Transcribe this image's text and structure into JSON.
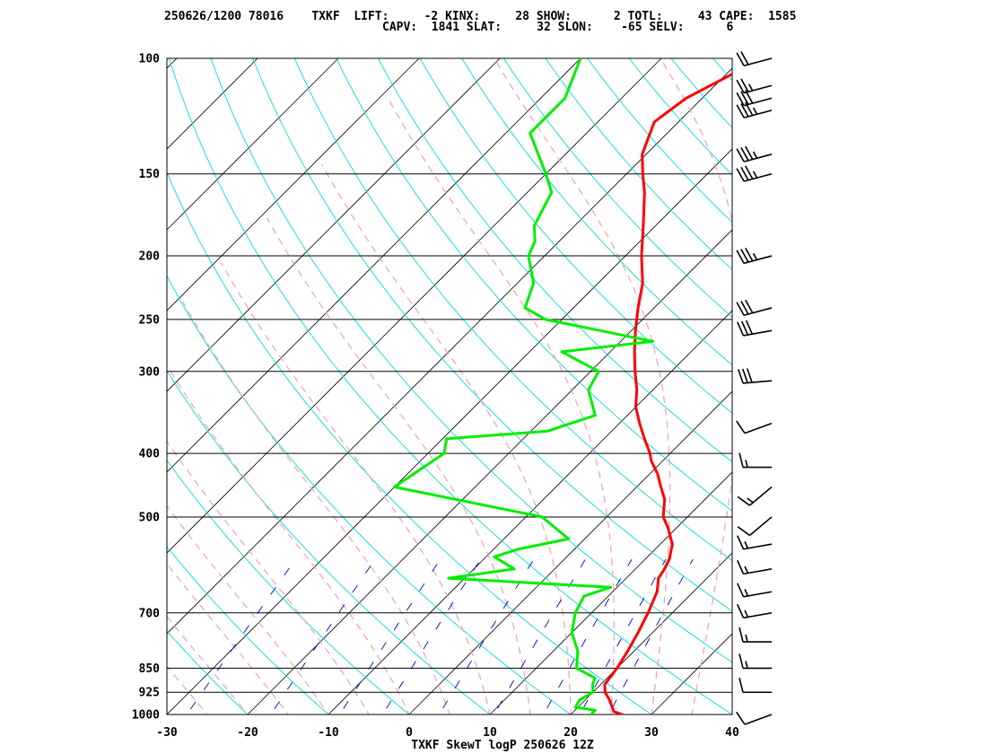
{
  "header": {
    "line1": "250626/1200 78016    TXKF  LIFT:     -2 KINX:     28 SHOW:      2 TOTL:     43 CAPE:  1585",
    "line2": "CAPV:  1841 SLAT:     32 SLON:    -65 SELV:      6"
  },
  "footer": "TXKF SkewT logP 250626 12Z",
  "colors": {
    "temperature": "#ff0000",
    "dewpoint": "#00ee00",
    "isotherm": "#000000",
    "dry_adiabat": "#00dddd",
    "moist_adiabat": "#f4a0b0",
    "mixing_ratio": "#0000cc"
  },
  "chart_data": {
    "type": "line",
    "title": "TXKF SkewT logP 250626 12Z",
    "x_axis": {
      "label": "",
      "range": [
        -30,
        40
      ],
      "ticks": [
        -30,
        -20,
        -10,
        0,
        10,
        20,
        30,
        40
      ]
    },
    "y_axis": {
      "label": "",
      "scale": "log-pressure",
      "range": [
        1000,
        100
      ],
      "ticks": [
        100,
        150,
        200,
        250,
        300,
        400,
        500,
        700,
        850,
        925,
        1000
      ]
    },
    "series": [
      {
        "key": "temperature",
        "points": [
          [
            1000,
            26.4
          ],
          [
            990,
            25
          ],
          [
            970,
            24
          ],
          [
            950,
            23
          ],
          [
            925,
            21.5
          ],
          [
            900,
            20.5
          ],
          [
            850,
            20
          ],
          [
            800,
            19.2
          ],
          [
            750,
            18.2
          ],
          [
            700,
            17
          ],
          [
            650,
            15.5
          ],
          [
            620,
            14
          ],
          [
            600,
            13.6
          ],
          [
            580,
            13
          ],
          [
            550,
            11.5
          ],
          [
            520,
            9
          ],
          [
            500,
            7
          ],
          [
            470,
            5
          ],
          [
            450,
            3
          ],
          [
            430,
            1
          ],
          [
            410,
            -1.5
          ],
          [
            400,
            -2.5
          ],
          [
            380,
            -5
          ],
          [
            360,
            -7.5
          ],
          [
            340,
            -10
          ],
          [
            320,
            -12
          ],
          [
            300,
            -14.5
          ],
          [
            280,
            -17
          ],
          [
            260,
            -19.5
          ],
          [
            240,
            -22
          ],
          [
            220,
            -24.5
          ],
          [
            200,
            -28
          ],
          [
            180,
            -31.5
          ],
          [
            160,
            -35.5
          ],
          [
            150,
            -38
          ],
          [
            140,
            -40.5
          ],
          [
            125,
            -43
          ],
          [
            115,
            -42
          ],
          [
            100,
            -37.5
          ]
        ]
      },
      {
        "key": "dewpoint",
        "points": [
          [
            1000,
            22.5
          ],
          [
            985,
            22.5
          ],
          [
            975,
            19.7
          ],
          [
            950,
            19.3
          ],
          [
            925,
            20
          ],
          [
            900,
            19
          ],
          [
            880,
            18.5
          ],
          [
            850,
            15
          ],
          [
            800,
            13
          ],
          [
            750,
            10
          ],
          [
            700,
            8
          ],
          [
            660,
            7
          ],
          [
            640,
            9.2
          ],
          [
            620,
            -12
          ],
          [
            600,
            -5
          ],
          [
            575,
            -9
          ],
          [
            560,
            -7
          ],
          [
            540,
            -2
          ],
          [
            500,
            -8
          ],
          [
            450,
            -30
          ],
          [
            400,
            -28
          ],
          [
            380,
            -29.5
          ],
          [
            370,
            -18
          ],
          [
            350,
            -14
          ],
          [
            320,
            -18
          ],
          [
            300,
            -19
          ],
          [
            280,
            -26
          ],
          [
            270,
            -16
          ],
          [
            250,
            -32
          ],
          [
            240,
            -36
          ],
          [
            220,
            -38
          ],
          [
            200,
            -42
          ],
          [
            190,
            -43
          ],
          [
            180,
            -45
          ],
          [
            160,
            -47
          ],
          [
            150,
            -50
          ],
          [
            130,
            -57
          ],
          [
            115,
            -57
          ],
          [
            100,
            -60
          ]
        ]
      }
    ],
    "wind_barbs": [
      {
        "p": 1000,
        "dir": 250,
        "spd": 10
      },
      {
        "p": 925,
        "dir": 270,
        "spd": 10
      },
      {
        "p": 850,
        "dir": 270,
        "spd": 15
      },
      {
        "p": 775,
        "dir": 270,
        "spd": 15
      },
      {
        "p": 700,
        "dir": 260,
        "spd": 15
      },
      {
        "p": 650,
        "dir": 260,
        "spd": 15
      },
      {
        "p": 600,
        "dir": 260,
        "spd": 15
      },
      {
        "p": 550,
        "dir": 260,
        "spd": 15
      },
      {
        "p": 500,
        "dir": 230,
        "spd": 10
      },
      {
        "p": 450,
        "dir": 230,
        "spd": 15
      },
      {
        "p": 420,
        "dir": 270,
        "spd": 15
      },
      {
        "p": 360,
        "dir": 250,
        "spd": 10
      },
      {
        "p": 310,
        "dir": 265,
        "spd": 30
      },
      {
        "p": 260,
        "dir": 260,
        "spd": 30
      },
      {
        "p": 240,
        "dir": 255,
        "spd": 30
      },
      {
        "p": 200,
        "dir": 255,
        "spd": 35
      },
      {
        "p": 150,
        "dir": 255,
        "spd": 35
      },
      {
        "p": 140,
        "dir": 255,
        "spd": 35
      },
      {
        "p": 120,
        "dir": 255,
        "spd": 35
      },
      {
        "p": 115,
        "dir": 255,
        "spd": 30
      },
      {
        "p": 110,
        "dir": 255,
        "spd": 25
      },
      {
        "p": 100,
        "dir": 255,
        "spd": 20
      }
    ]
  }
}
